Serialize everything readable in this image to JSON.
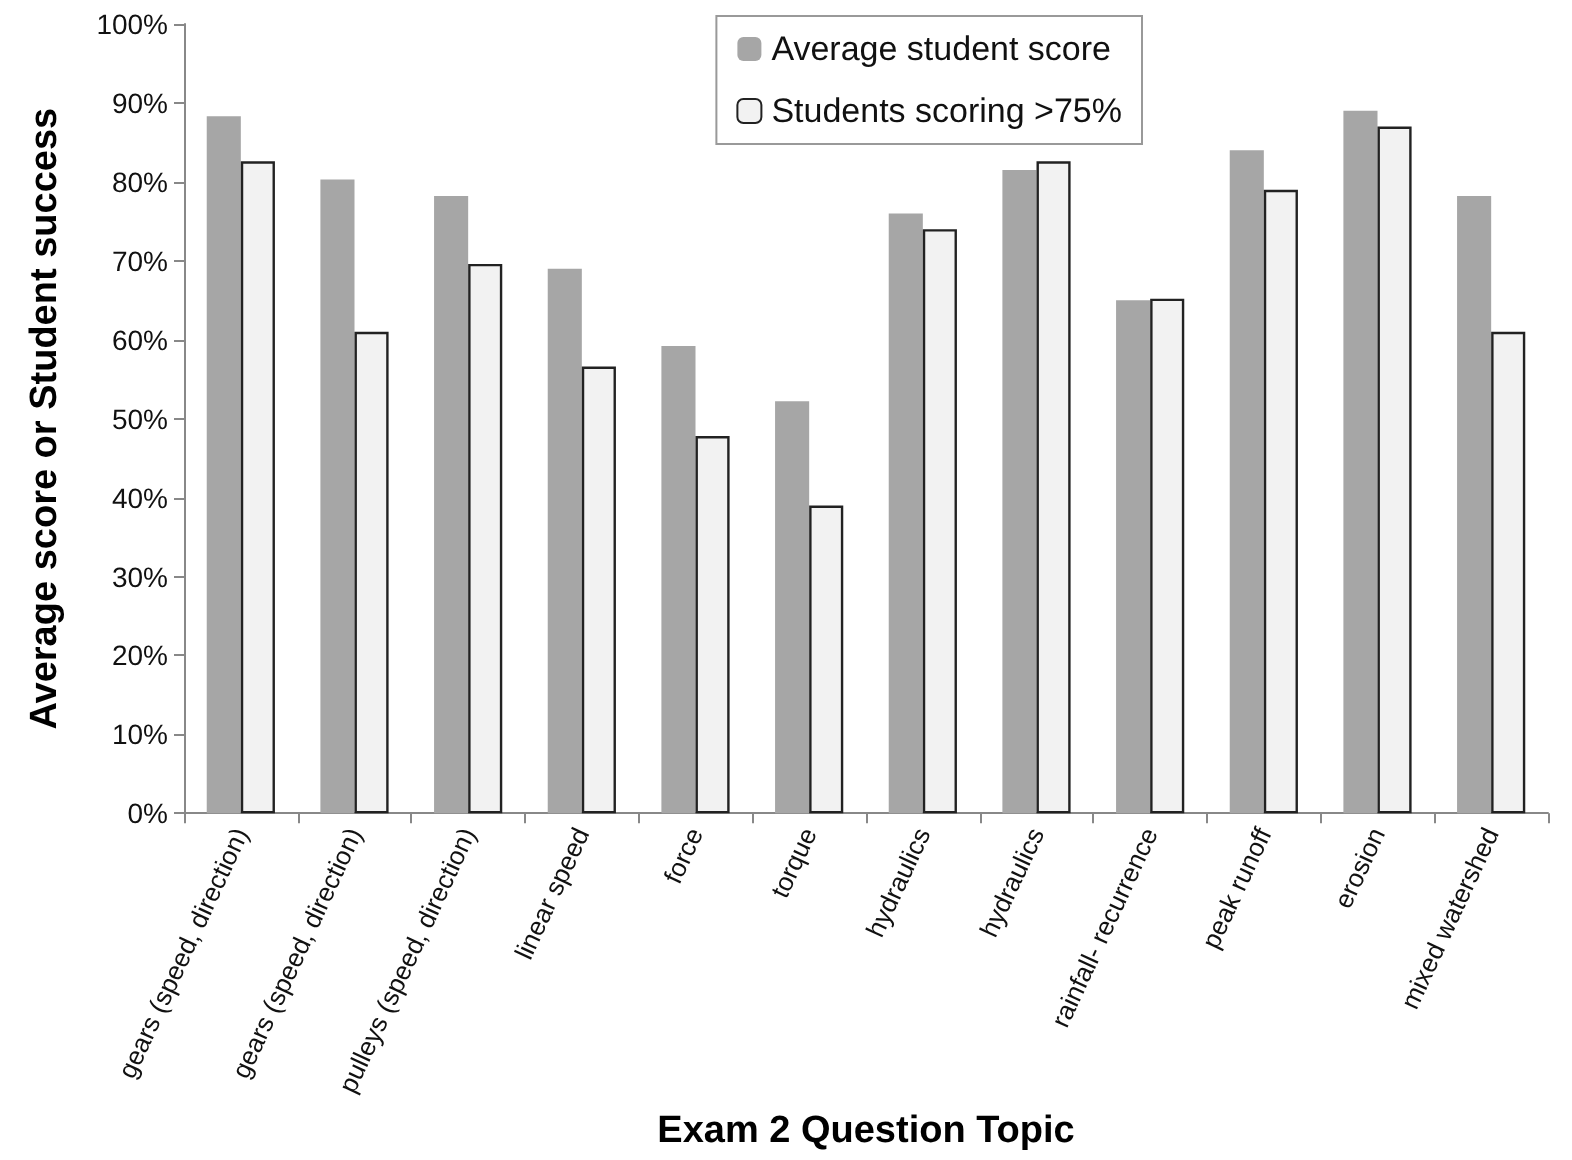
{
  "chart_data": {
    "type": "bar",
    "xlabel": "Exam 2 Question Topic",
    "ylabel": "Average score or Student success",
    "categories": [
      "gears (speed, direction)",
      "gears (speed, direction)",
      "pulleys (speed, direction)",
      "linear speed",
      "force",
      "torque",
      "hydraulics",
      "hydraulics",
      "rainfall- recurrence",
      "peak runoff",
      "erosion",
      "mixed watershed"
    ],
    "series": [
      {
        "name": "Average student score",
        "color": "#a6a6a6",
        "values": [
          88.3,
          80.3,
          78.2,
          69,
          59.2,
          52.2,
          76,
          81.5,
          65,
          84,
          89,
          78.2
        ]
      },
      {
        "name": "Students scoring >75%",
        "color": "#f2f2f2",
        "values": [
          82.6,
          61,
          69.6,
          56.6,
          47.8,
          39,
          74,
          82.6,
          65.2,
          79,
          87,
          61
        ]
      }
    ],
    "ylim": [
      0,
      100
    ],
    "yticks": [
      {
        "value": 0,
        "label": "0%"
      },
      {
        "value": 10,
        "label": "10%"
      },
      {
        "value": 20,
        "label": "20%"
      },
      {
        "value": 30,
        "label": "30%"
      },
      {
        "value": 40,
        "label": "40%"
      },
      {
        "value": 50,
        "label": "50%"
      },
      {
        "value": 60,
        "label": "60%"
      },
      {
        "value": 70,
        "label": "70%"
      },
      {
        "value": 80,
        "label": "80%"
      },
      {
        "value": 90,
        "label": "90%"
      },
      {
        "value": 100,
        "label": "100%"
      }
    ],
    "grid": false,
    "legend": "top right"
  }
}
